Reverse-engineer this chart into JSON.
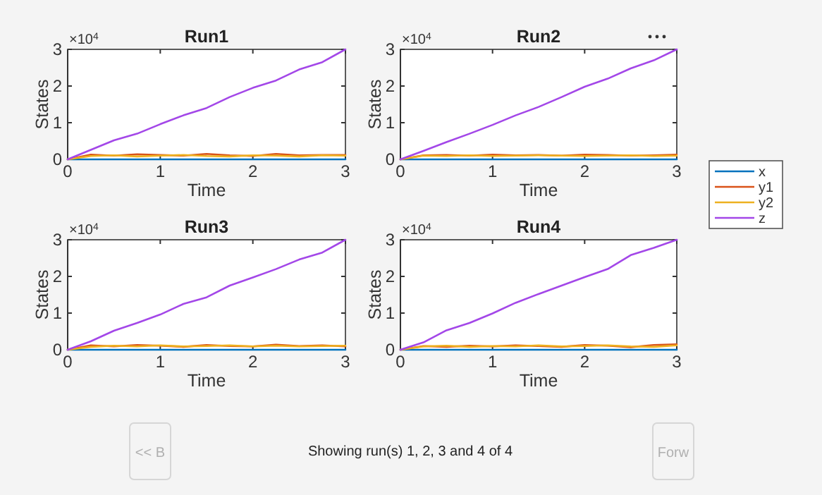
{
  "chart_data": [
    {
      "type": "line",
      "title": "Run1",
      "xlabel": "Time",
      "ylabel": "States",
      "annotations": [
        "×10$^{4}$",
        "Showing run(s) 1, 2, 3 and 4 of 4",
        "<< B",
        "Forw"
      ],
      "x": [
        0,
        0.25,
        0.5,
        0.75,
        1,
        1.25,
        1.5,
        1.75,
        2,
        2.25,
        2.5,
        2.75,
        3
      ],
      "xlim": [
        0,
        3
      ],
      "xticks": [
        0,
        1,
        2,
        3
      ],
      "ylim": [
        0,
        3
      ],
      "yticks": [
        0,
        1,
        2,
        3
      ],
      "legend": false,
      "series": [
        {
          "color": "#0072bd",
          "values": [
            0,
            0,
            0,
            0,
            0,
            0,
            0,
            0,
            0,
            0,
            0,
            0,
            0
          ]
        },
        {
          "color": "#d95319",
          "values": [
            0,
            0.13,
            0.1,
            0.14,
            0.12,
            0.1,
            0.15,
            0.11,
            0.09,
            0.15,
            0.11,
            0.12,
            0.12
          ]
        },
        {
          "color": "#edb120",
          "values": [
            0,
            0.09,
            0.11,
            0.08,
            0.1,
            0.12,
            0.09,
            0.08,
            0.11,
            0.1,
            0.08,
            0.11,
            0.1
          ]
        },
        {
          "color": "#a347e8",
          "values": [
            0,
            0.26,
            0.52,
            0.7,
            0.96,
            1.2,
            1.4,
            1.7,
            1.95,
            2.15,
            2.45,
            2.65,
            3
          ]
        }
      ]
    },
    {
      "type": "line",
      "title": "Run2",
      "xlabel": "Time",
      "ylabel": "States",
      "annotations": [
        "×10$^{4}$"
      ],
      "x": [
        0,
        0.25,
        0.5,
        0.75,
        1,
        1.25,
        1.5,
        1.75,
        2,
        2.25,
        2.5,
        2.75,
        3
      ],
      "xlim": [
        0,
        3
      ],
      "xticks": [
        0,
        1,
        2,
        3
      ],
      "ylim": [
        0,
        3
      ],
      "yticks": [
        0,
        1,
        2,
        3
      ],
      "legend": "right",
      "series": [
        {
          "name": "x",
          "color": "#0072bd",
          "values": [
            0,
            0,
            0,
            0,
            0,
            0,
            0,
            0,
            0,
            0,
            0,
            0,
            0
          ]
        },
        {
          "name": "y1",
          "color": "#d95319",
          "values": [
            0,
            0.11,
            0.12,
            0.1,
            0.13,
            0.11,
            0.12,
            0.1,
            0.13,
            0.12,
            0.1,
            0.11,
            0.13
          ]
        },
        {
          "name": "y2",
          "color": "#edb120",
          "values": [
            0,
            0.1,
            0.09,
            0.11,
            0.09,
            0.1,
            0.11,
            0.1,
            0.09,
            0.1,
            0.11,
            0.09,
            0.1
          ]
        },
        {
          "name": "z",
          "color": "#a347e8",
          "values": [
            0,
            0.23,
            0.47,
            0.7,
            0.94,
            1.2,
            1.43,
            1.7,
            1.98,
            2.2,
            2.48,
            2.7,
            3
          ]
        }
      ]
    },
    {
      "type": "line",
      "title": "Run3",
      "xlabel": "Time",
      "ylabel": "States",
      "annotations": [
        "×10$^{4}$"
      ],
      "x": [
        0,
        0.25,
        0.5,
        0.75,
        1,
        1.25,
        1.5,
        1.75,
        2,
        2.25,
        2.5,
        2.75,
        3
      ],
      "xlim": [
        0,
        3
      ],
      "xticks": [
        0,
        1,
        2,
        3
      ],
      "ylim": [
        0,
        3
      ],
      "yticks": [
        0,
        1,
        2,
        3
      ],
      "legend": false,
      "series": [
        {
          "color": "#0072bd",
          "values": [
            0,
            0,
            0,
            0,
            0,
            0,
            0,
            0,
            0,
            0,
            0,
            0,
            0
          ]
        },
        {
          "color": "#d95319",
          "values": [
            0,
            0.12,
            0.09,
            0.13,
            0.11,
            0.08,
            0.13,
            0.1,
            0.09,
            0.14,
            0.1,
            0.12,
            0.09
          ]
        },
        {
          "color": "#edb120",
          "values": [
            0,
            0.08,
            0.11,
            0.09,
            0.12,
            0.09,
            0.1,
            0.12,
            0.09,
            0.11,
            0.09,
            0.1,
            0.11
          ]
        },
        {
          "color": "#a347e8",
          "values": [
            0,
            0.23,
            0.52,
            0.73,
            0.96,
            1.25,
            1.43,
            1.75,
            1.97,
            2.2,
            2.46,
            2.65,
            3
          ]
        }
      ]
    },
    {
      "type": "line",
      "title": "Run4",
      "xlabel": "Time",
      "ylabel": "States",
      "annotations": [
        "×10$^{4}$"
      ],
      "x": [
        0,
        0.25,
        0.5,
        0.75,
        1,
        1.25,
        1.5,
        1.75,
        2,
        2.25,
        2.5,
        2.75,
        3
      ],
      "xlim": [
        0,
        3
      ],
      "xticks": [
        0,
        1,
        2,
        3
      ],
      "ylim": [
        0,
        3
      ],
      "yticks": [
        0,
        1,
        2,
        3
      ],
      "legend": false,
      "series": [
        {
          "color": "#0072bd",
          "values": [
            0,
            0,
            0,
            0,
            0,
            0,
            0,
            0,
            0,
            0,
            0,
            0,
            0
          ]
        },
        {
          "color": "#d95319",
          "values": [
            0,
            0.1,
            0.08,
            0.11,
            0.09,
            0.12,
            0.1,
            0.08,
            0.13,
            0.11,
            0.07,
            0.13,
            0.15
          ]
        },
        {
          "color": "#edb120",
          "values": [
            0,
            0.09,
            0.11,
            0.08,
            0.1,
            0.09,
            0.12,
            0.09,
            0.1,
            0.12,
            0.09,
            0.08,
            0.12
          ]
        },
        {
          "color": "#a347e8",
          "values": [
            0,
            0.2,
            0.53,
            0.73,
            0.99,
            1.28,
            1.52,
            1.75,
            1.98,
            2.2,
            2.58,
            2.78,
            3
          ]
        }
      ]
    }
  ]
}
